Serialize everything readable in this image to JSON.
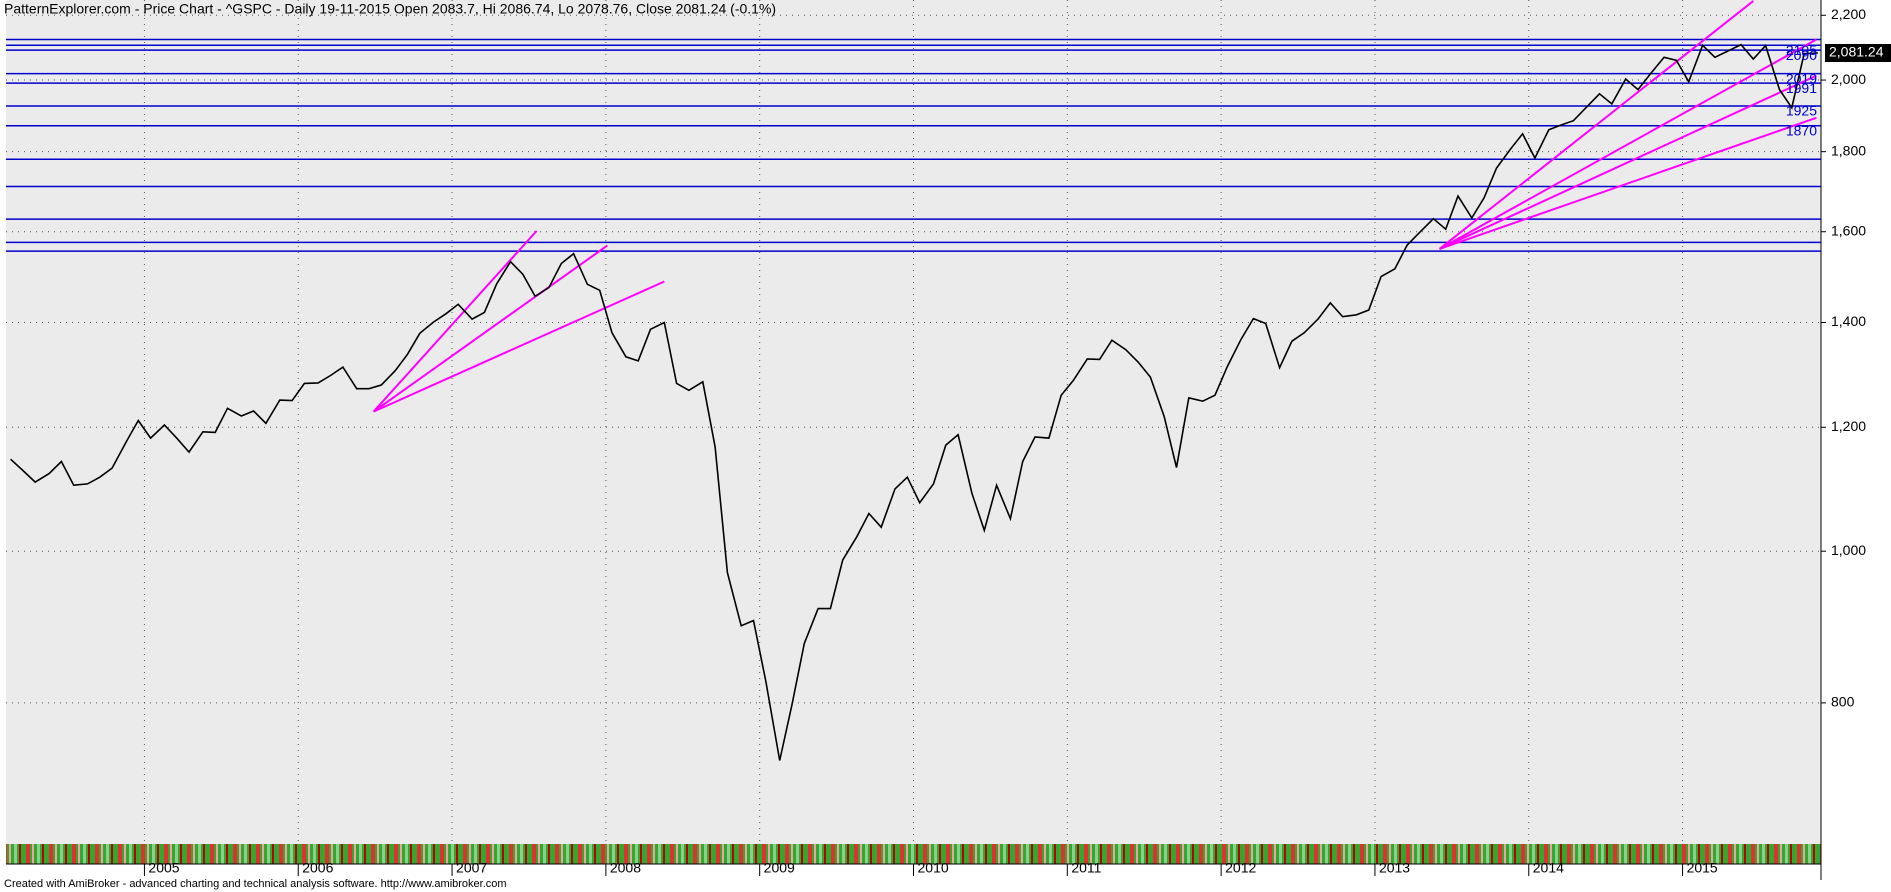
{
  "chart_data": {
    "type": "line",
    "title": "PatternExplorer.com - Price Chart - ^GSPC - Daily 19-11-2015 Open 2083.7, Hi 2086.74, Lo 2078.76, Close 2081.24 (-0.1%)",
    "footer": "Created with AmiBroker - advanced charting and technical analysis software. http://www.amibroker.com",
    "log_scale": true,
    "grid": true,
    "color": "#000000",
    "x": [
      2004.13,
      2004.21,
      2004.29,
      2004.38,
      2004.46,
      2004.54,
      2004.63,
      2004.71,
      2004.79,
      2004.88,
      2004.96,
      2005.04,
      2005.13,
      2005.21,
      2005.29,
      2005.38,
      2005.46,
      2005.54,
      2005.63,
      2005.71,
      2005.79,
      2005.88,
      2005.96,
      2006.04,
      2006.13,
      2006.21,
      2006.29,
      2006.38,
      2006.46,
      2006.54,
      2006.63,
      2006.71,
      2006.79,
      2006.88,
      2006.96,
      2007.04,
      2007.13,
      2007.21,
      2007.29,
      2007.38,
      2007.46,
      2007.54,
      2007.63,
      2007.71,
      2007.79,
      2007.88,
      2007.96,
      2008.04,
      2008.13,
      2008.21,
      2008.29,
      2008.38,
      2008.46,
      2008.54,
      2008.63,
      2008.71,
      2008.79,
      2008.88,
      2008.96,
      2009.04,
      2009.13,
      2009.21,
      2009.29,
      2009.38,
      2009.46,
      2009.54,
      2009.63,
      2009.71,
      2009.79,
      2009.88,
      2009.96,
      2010.04,
      2010.13,
      2010.21,
      2010.29,
      2010.38,
      2010.46,
      2010.54,
      2010.63,
      2010.71,
      2010.79,
      2010.88,
      2010.96,
      2011.04,
      2011.13,
      2011.21,
      2011.29,
      2011.38,
      2011.46,
      2011.54,
      2011.63,
      2011.71,
      2011.79,
      2011.88,
      2011.96,
      2012.04,
      2012.13,
      2012.21,
      2012.29,
      2012.38,
      2012.46,
      2012.54,
      2012.63,
      2012.71,
      2012.79,
      2012.88,
      2012.96,
      2013.04,
      2013.13,
      2013.21,
      2013.29,
      2013.38,
      2013.46,
      2013.54,
      2013.63,
      2013.71,
      2013.79,
      2013.88,
      2013.96,
      2014.04,
      2014.13,
      2014.21,
      2014.29,
      2014.38,
      2014.46,
      2014.54,
      2014.63,
      2014.71,
      2014.79,
      2014.88,
      2014.96,
      2015.04,
      2015.13,
      2015.21,
      2015.29,
      2015.38,
      2015.46,
      2015.54,
      2015.63,
      2015.71,
      2015.79,
      2015.88
    ],
    "values": [
      1145,
      1126,
      1107,
      1121,
      1141,
      1102,
      1104,
      1115,
      1130,
      1174,
      1212,
      1181,
      1204,
      1181,
      1157,
      1192,
      1191,
      1234,
      1220,
      1229,
      1207,
      1249,
      1248,
      1280,
      1281,
      1295,
      1311,
      1270,
      1270,
      1277,
      1304,
      1336,
      1378,
      1401,
      1418,
      1438,
      1407,
      1421,
      1482,
      1531,
      1503,
      1455,
      1474,
      1527,
      1549,
      1481,
      1468,
      1379,
      1331,
      1323,
      1386,
      1400,
      1280,
      1267,
      1283,
      1166,
      969,
      896,
      903,
      826,
      735,
      798,
      873,
      919,
      919,
      987,
      1021,
      1057,
      1036,
      1096,
      1115,
      1074,
      1104,
      1169,
      1187,
      1089,
      1031,
      1102,
      1049,
      1141,
      1183,
      1181,
      1258,
      1286,
      1327,
      1326,
      1364,
      1345,
      1321,
      1292,
      1219,
      1131,
      1253,
      1247,
      1258,
      1312,
      1366,
      1408,
      1398,
      1310,
      1362,
      1379,
      1407,
      1441,
      1412,
      1416,
      1426,
      1498,
      1515,
      1569,
      1598,
      1631,
      1606,
      1686,
      1633,
      1682,
      1757,
      1806,
      1848,
      1783,
      1859,
      1872,
      1884,
      1924,
      1960,
      1931,
      2003,
      1972,
      2018,
      2068,
      2059,
      1995,
      2105,
      2068,
      2086,
      2107,
      2063,
      2104,
      1972,
      1920,
      2079,
      2081.24
    ],
    "xlim": [
      2004.1,
      2015.9
    ],
    "xticks": [
      2005,
      2006,
      2007,
      2008,
      2009,
      2010,
      2011,
      2012,
      2013,
      2014,
      2015
    ],
    "ylim": [
      650,
      2250
    ],
    "yticks": [
      800,
      {
        "value": 1000,
        "label": "1,000"
      },
      {
        "value": 1200,
        "label": "1,200"
      },
      {
        "value": 1400,
        "label": "1,400"
      },
      {
        "value": 1600,
        "label": "1,600"
      },
      {
        "value": 1800,
        "label": "1,800"
      },
      {
        "value": 2000,
        "label": "2,000"
      },
      {
        "value": 2200,
        "label": "2,200"
      }
    ],
    "last": {
      "value": 2081.24,
      "label": "2,081.24"
    },
    "level_color": "#0000cc",
    "labeled_levels": [
      2105,
      2090,
      2019,
      1991,
      1925,
      1870
    ],
    "levels": [
      2123,
      1780,
      1710,
      1630,
      1575,
      1555
    ],
    "trend_color": "#ff00ff",
    "trendlines": [
      {
        "x": [
          2006.49,
          2007.55
        ],
        "y": [
          1228,
          1602
        ]
      },
      {
        "x": [
          2006.49,
          2008.01
        ],
        "y": [
          1228,
          1568
        ]
      },
      {
        "x": [
          2006.49,
          2008.38
        ],
        "y": [
          1228,
          1487
        ]
      },
      {
        "x": [
          2013.42,
          2015.46
        ],
        "y": [
          1560,
          2247
        ]
      },
      {
        "x": [
          2013.42,
          2015.87
        ],
        "y": [
          1560,
          2123
        ]
      },
      {
        "x": [
          2013.42,
          2015.87
        ],
        "y": [
          1560,
          2013
        ]
      },
      {
        "x": [
          2013.42,
          2015.87
        ],
        "y": [
          1560,
          1892
        ]
      }
    ]
  }
}
